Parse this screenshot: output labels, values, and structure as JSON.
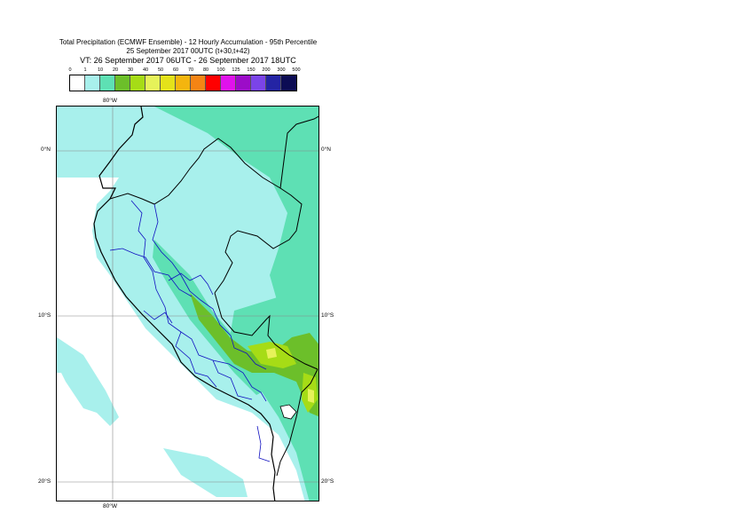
{
  "header": {
    "line1": "Total Precipitation (ECMWF Ensemble) - 12 Hourly Accumulation - 95th Percentile",
    "line2": "25 September 2017 00UTC (t+30,t+42)",
    "line3": "VT: 26 September 2017 06UTC - 26 September 2017 18UTC"
  },
  "colorbar": {
    "ticks": [
      "0",
      "1",
      "10",
      "20",
      "30",
      "40",
      "50",
      "60",
      "70",
      "80",
      "100",
      "125",
      "150",
      "200",
      "300",
      "500"
    ],
    "colors": [
      "#ffffff",
      "#a8f0ec",
      "#5ee0b4",
      "#6cbf2a",
      "#a6dc16",
      "#e6f25a",
      "#e4e21a",
      "#f4b50e",
      "#f48414",
      "#ff0000",
      "#e012ec",
      "#9c0cc8",
      "#7b44e8",
      "#2424a4",
      "#0c0c54"
    ]
  },
  "map": {
    "lat_labels": [
      "0°N",
      "10°S",
      "20°S"
    ],
    "lon_labels": [
      "80°W",
      "80°W"
    ],
    "colors": {
      "light": "#a8f0ec",
      "teal": "#5ee0b4",
      "green": "#6cbf2a",
      "lime": "#a6dc16",
      "yellow": "#e6f25a",
      "land_border": "#000000",
      "admin_border": "#1010c0",
      "grid": "#888888"
    }
  }
}
